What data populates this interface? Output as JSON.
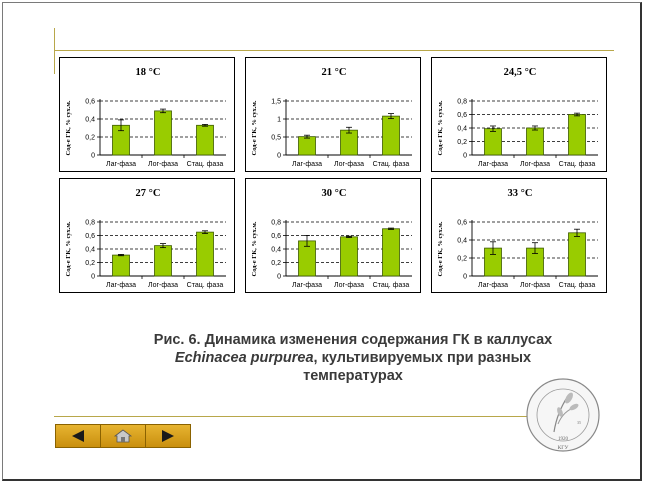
{
  "caption": {
    "line1": "Рис. 6. Динамика изменения содержания ГК в каллусах",
    "line2_italic": "Echinacea purpurea",
    "line2_rest": ", культивируемых  при разных",
    "line3": "температурах"
  },
  "nav": {
    "prev": "prev-arrow-icon",
    "home": "home-icon",
    "next": "next-arrow-icon"
  },
  "seal": {
    "ring_text": "Кафедра физиологии и биохимии растений",
    "year": "1920",
    "bottom": "КГУ",
    "num": "35"
  },
  "colors": {
    "bar": "#99cc00",
    "bar_edge": "#3d5a00",
    "nav": "#d9a016",
    "rule": "#b8a74a"
  },
  "chart_data": [
    {
      "type": "bar",
      "title": "18 °C",
      "ylabel": "Сод-е ГК, % сух.м.",
      "categories": [
        "Лаг-фаза",
        "Лог-фаза",
        "Стац. фаза"
      ],
      "values": [
        0.33,
        0.49,
        0.33
      ],
      "errors": [
        0.06,
        0.02,
        0.01
      ],
      "ylim": [
        0,
        0.6
      ],
      "yticks": [
        "0",
        "0,2",
        "0,4",
        "0,6"
      ],
      "yticks_v": [
        0,
        0.2,
        0.4,
        0.6
      ],
      "grid": "dashed"
    },
    {
      "type": "bar",
      "title": "21 °C",
      "ylabel": "Сод-е ГК, % сух.м.",
      "categories": [
        "Лаг-фаза",
        "Лог-фаза",
        "Стац. фаза"
      ],
      "values": [
        0.51,
        0.69,
        1.08
      ],
      "errors": [
        0.04,
        0.08,
        0.07
      ],
      "ylim": [
        0,
        1.5
      ],
      "yticks": [
        "0",
        "0,5",
        "1",
        "1,5"
      ],
      "yticks_v": [
        0,
        0.5,
        1,
        1.5
      ],
      "grid": "dashed"
    },
    {
      "type": "bar",
      "title": "24,5 °C",
      "ylabel": "Сод-е ГК, % сух.м.",
      "categories": [
        "Лаг-фаза",
        "Лог-фаза",
        "Стац. фаза"
      ],
      "values": [
        0.39,
        0.4,
        0.6
      ],
      "errors": [
        0.04,
        0.03,
        0.02
      ],
      "ylim": [
        0,
        0.8
      ],
      "yticks": [
        "0",
        "0,2",
        "0,4",
        "0,6",
        "0,8"
      ],
      "yticks_v": [
        0,
        0.2,
        0.4,
        0.6,
        0.8
      ],
      "grid": "dashed"
    },
    {
      "type": "bar",
      "title": "27 °C",
      "ylabel": "Сод-е ГК, % сух.м.",
      "categories": [
        "Лаг-фаза",
        "Лог-фаза",
        "Стац. фаза"
      ],
      "values": [
        0.31,
        0.45,
        0.65
      ],
      "errors": [
        0.01,
        0.03,
        0.02
      ],
      "ylim": [
        0,
        0.8
      ],
      "yticks": [
        "0",
        "0,2",
        "0,4",
        "0,6",
        "0,8"
      ],
      "yticks_v": [
        0,
        0.2,
        0.4,
        0.6,
        0.8
      ],
      "grid": "dashed"
    },
    {
      "type": "bar",
      "title": "30 °C",
      "ylabel": "Сод-е ГК, % сух.м.",
      "categories": [
        "Лаг-фаза",
        "Лог-фаза",
        "Стац. фаза"
      ],
      "values": [
        0.52,
        0.58,
        0.7
      ],
      "errors": [
        0.08,
        0.01,
        0.01
      ],
      "ylim": [
        0,
        0.8
      ],
      "yticks": [
        "0",
        "0,2",
        "0,4",
        "0,6",
        "0,8"
      ],
      "yticks_v": [
        0,
        0.2,
        0.4,
        0.6,
        0.8
      ],
      "grid": "dashed"
    },
    {
      "type": "bar",
      "title": "33 °C",
      "ylabel": "Сод-е ГК, % сух.м.",
      "categories": [
        "Лаг-фаза",
        "Лог-фаза",
        "Стац. фаза"
      ],
      "values": [
        0.31,
        0.31,
        0.48
      ],
      "errors": [
        0.07,
        0.06,
        0.04
      ],
      "ylim": [
        0,
        0.6
      ],
      "yticks": [
        "0",
        "0,2",
        "0,4",
        "0,6"
      ],
      "yticks_v": [
        0,
        0.2,
        0.4,
        0.6
      ],
      "grid": "dashed"
    }
  ]
}
